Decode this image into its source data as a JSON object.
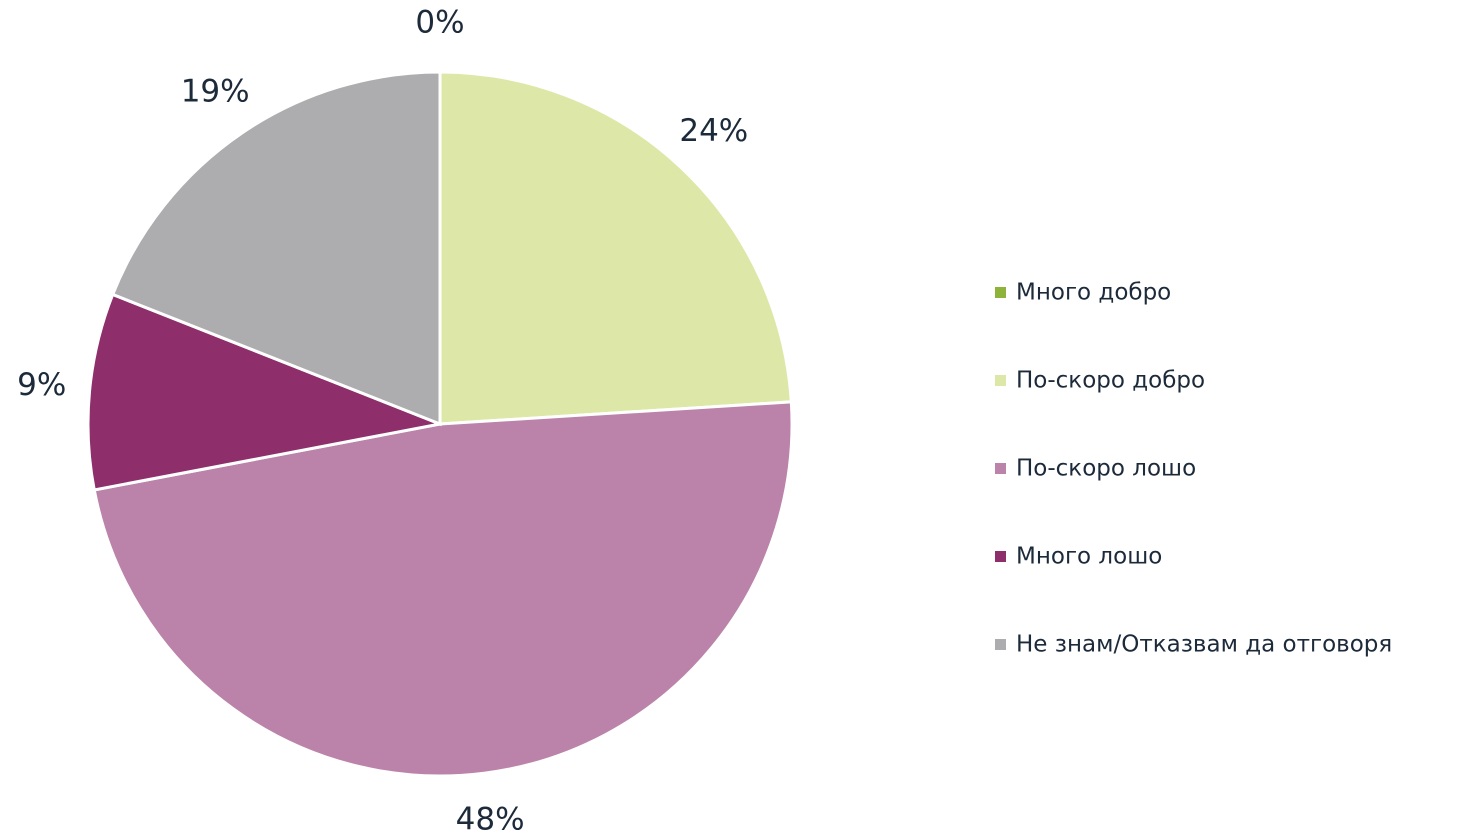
{
  "chart_data": {
    "type": "pie",
    "categories": [
      "Много добро",
      "По-скоро добро",
      "По-скоро лошо",
      "Много лошо",
      "Не знам/Отказвам да отговоря"
    ],
    "values": [
      0,
      24,
      48,
      9,
      19
    ],
    "value_labels": [
      "0%",
      "24%",
      "48%",
      "9%",
      "19%"
    ],
    "colors": [
      "#8db33a",
      "#dde8a8",
      "#bb83a9",
      "#8e2f6c",
      "#adadaf"
    ],
    "legend": "right"
  }
}
